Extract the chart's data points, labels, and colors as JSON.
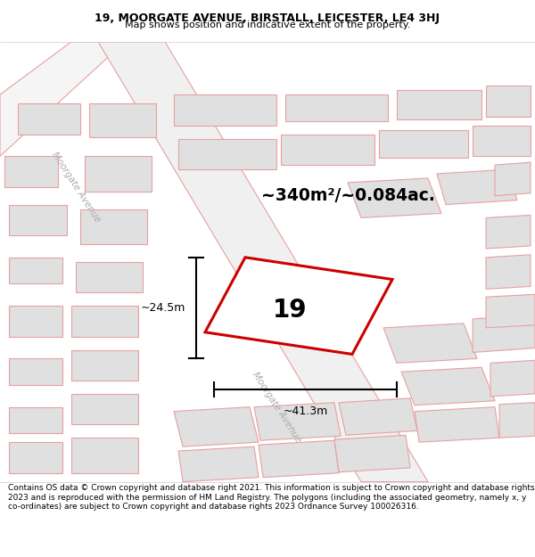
{
  "title_line1": "19, MOORGATE AVENUE, BIRSTALL, LEICESTER, LE4 3HJ",
  "title_line2": "Map shows position and indicative extent of the property.",
  "footer_text": "Contains OS data © Crown copyright and database right 2021. This information is subject to Crown copyright and database rights 2023 and is reproduced with the permission of HM Land Registry. The polygons (including the associated geometry, namely x, y co-ordinates) are subject to Crown copyright and database rights 2023 Ordnance Survey 100026316.",
  "area_text": "~340m²/~0.084ac.",
  "number_text": "19",
  "dim_width": "~41.3m",
  "dim_height": "~24.5m",
  "bg_color": "#ffffff",
  "property_fill": "#ffffff",
  "property_edge": "#cc0000",
  "build_fill": "#e0e0e0",
  "build_edge": "#e8a0a0",
  "road_fill": "#ffffff",
  "road_edge": "#e8a0a0",
  "title_bg": "#ffffff",
  "footer_bg": "#ffffff",
  "dim_color": "#000000",
  "text_color": "#000000",
  "street_color": "#aaaaaa"
}
